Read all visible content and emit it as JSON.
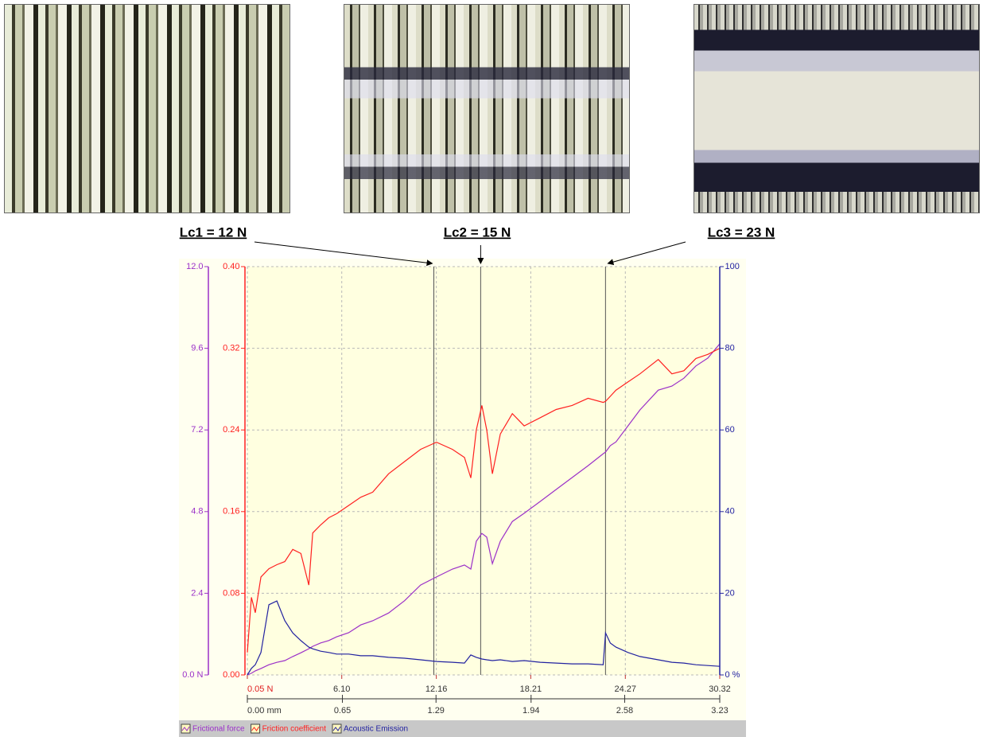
{
  "chart_data": {
    "type": "line",
    "grid": true,
    "x": [
      0.05,
      0.31,
      0.56,
      0.92,
      1.43,
      1.94,
      2.45,
      2.96,
      3.48,
      3.99,
      4.24,
      4.75,
      5.27,
      5.78,
      6.54,
      7.31,
      8.08,
      9.1,
      10.12,
      11.15,
      12.17,
      13.19,
      13.96,
      14.37,
      14.72,
      15.08,
      15.39,
      15.75,
      16.26,
      17.03,
      17.79,
      18.82,
      19.84,
      20.86,
      21.88,
      22.85,
      23.0,
      23.31,
      23.67,
      24.44,
      25.21,
      26.38,
      27.25,
      28.02,
      28.79,
      29.55,
      30.32
    ],
    "xlim": [
      0.05,
      30.32
    ],
    "xticks": [
      {
        "value": 0.05,
        "label": "0.05 N"
      },
      {
        "value": 6.1,
        "label": "6.10"
      },
      12.16,
      18.21,
      24.27,
      30.32
    ],
    "x2lim": [
      0,
      3.23
    ],
    "x2ticks": [
      {
        "value": 0,
        "label": "0.00 mm"
      },
      0.65,
      1.29,
      1.94,
      2.58,
      3.23
    ],
    "ylim": [
      0,
      12
    ],
    "yticks": [
      {
        "value": 0,
        "label": "0.0 N"
      },
      2.4,
      4.8,
      7.2,
      9.6,
      {
        "value": 12,
        "label": "12.0"
      }
    ],
    "y2lim": [
      0,
      0.4
    ],
    "y2ticks": [
      {
        "value": 0,
        "label": "0.00"
      },
      0.08,
      0.16,
      0.24,
      0.32,
      {
        "value": 0.4,
        "label": "0.40"
      }
    ],
    "y3lim": [
      0,
      100
    ],
    "y3ticks": [
      {
        "value": 0,
        "label": "0 %"
      },
      20,
      40,
      60,
      80,
      100
    ],
    "series": [
      {
        "name": "Frictional force",
        "color": "#9b30c8",
        "axis": "y",
        "values": [
          0,
          0.05,
          0.12,
          0.19,
          0.3,
          0.37,
          0.42,
          0.54,
          0.65,
          0.77,
          0.84,
          0.94,
          1.01,
          1.12,
          1.24,
          1.47,
          1.59,
          1.82,
          2.18,
          2.64,
          2.88,
          3.11,
          3.23,
          3.11,
          3.93,
          4.16,
          4.05,
          3.27,
          3.93,
          4.51,
          4.75,
          5.1,
          5.45,
          5.8,
          6.15,
          6.5,
          6.55,
          6.74,
          6.85,
          7.32,
          7.79,
          8.37,
          8.49,
          8.72,
          9.08,
          9.31,
          9.73
        ]
      },
      {
        "name": "Friction coefficient",
        "color": "#ff2020",
        "axis": "y2",
        "values": [
          0.022,
          0.076,
          0.061,
          0.096,
          0.104,
          0.108,
          0.111,
          0.123,
          0.119,
          0.088,
          0.139,
          0.147,
          0.154,
          0.158,
          0.166,
          0.174,
          0.179,
          0.197,
          0.209,
          0.221,
          0.228,
          0.221,
          0.213,
          0.193,
          0.24,
          0.264,
          0.24,
          0.197,
          0.236,
          0.256,
          0.244,
          0.252,
          0.26,
          0.264,
          0.271,
          0.267,
          0.268,
          0.273,
          0.279,
          0.287,
          0.295,
          0.309,
          0.295,
          0.298,
          0.31,
          0.314,
          0.32
        ]
      },
      {
        "name": "Acoustic Emission",
        "color": "#2222a0",
        "axis": "y3",
        "values": [
          0,
          1.6,
          2.5,
          5.5,
          17.2,
          18.1,
          13.3,
          10.3,
          8.4,
          6.8,
          6.4,
          5.8,
          5.5,
          5.1,
          5.1,
          4.7,
          4.7,
          4.3,
          4.1,
          3.7,
          3.3,
          3.1,
          2.9,
          4.9,
          4.3,
          3.9,
          3.7,
          3.5,
          3.7,
          3.3,
          3.5,
          3.1,
          2.9,
          2.7,
          2.7,
          2.5,
          10.3,
          7.8,
          6.8,
          5.5,
          4.5,
          3.7,
          3.1,
          2.9,
          2.5,
          2.3,
          2.1
        ]
      }
    ],
    "annotations": [
      {
        "text": "Lc1 = 12 N",
        "x": 12
      },
      {
        "text": "Lc2 = 15 N",
        "x": 15
      },
      {
        "text": "Lc3 = 23 N",
        "x": 23
      }
    ]
  }
}
